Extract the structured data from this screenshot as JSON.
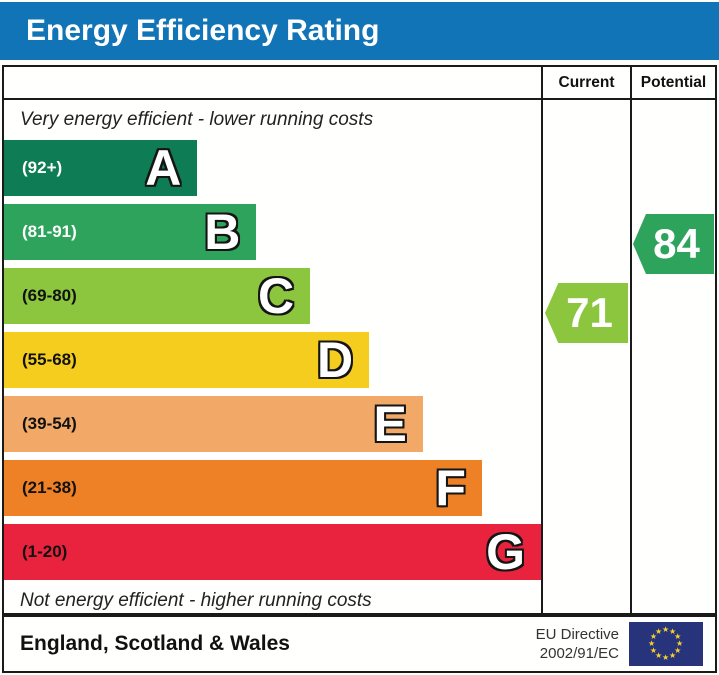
{
  "title": "Energy Efficiency Rating",
  "header": {
    "current": "Current",
    "potential": "Potential"
  },
  "notes": {
    "top": "Very energy efficient - lower running costs",
    "bottom": "Not energy efficient - higher running costs"
  },
  "bands": [
    {
      "letter": "A",
      "range": "(92+)",
      "color": "#0e7d55",
      "label_color": "#ffffff",
      "width_pct": 36
    },
    {
      "letter": "B",
      "range": "(81-91)",
      "color": "#2ea35c",
      "label_color": "#ffffff",
      "width_pct": 47
    },
    {
      "letter": "C",
      "range": "(69-80)",
      "color": "#8cc63f",
      "label_color": "#111111",
      "width_pct": 57
    },
    {
      "letter": "D",
      "range": "(55-68)",
      "color": "#f5cd1f",
      "label_color": "#111111",
      "width_pct": 68
    },
    {
      "letter": "E",
      "range": "(39-54)",
      "color": "#f2a968",
      "label_color": "#111111",
      "width_pct": 78
    },
    {
      "letter": "F",
      "range": "(21-38)",
      "color": "#ee8125",
      "label_color": "#111111",
      "width_pct": 89
    },
    {
      "letter": "G",
      "range": "(1-20)",
      "color": "#e9233d",
      "label_color": "#111111",
      "width_pct": 100
    }
  ],
  "markers": {
    "current": {
      "value": "71",
      "color": "#8cc63f",
      "band": "C"
    },
    "potential": {
      "value": "84",
      "color": "#2ea35c",
      "band": "B"
    }
  },
  "footer": {
    "region": "England, Scotland & Wales",
    "directive_line1": "EU Directive",
    "directive_line2": "2002/91/EC"
  },
  "colors": {
    "title_bar": "#1074b6",
    "border": "#1a1a1a",
    "flag_bg": "#27337a",
    "flag_stars": "#f8d12a"
  },
  "chart_data": {
    "type": "bar",
    "orientation": "horizontal",
    "title": "Energy Efficiency Rating",
    "categories": [
      "A",
      "B",
      "C",
      "D",
      "E",
      "F",
      "G"
    ],
    "category_ranges": [
      "92+",
      "81-91",
      "69-80",
      "55-68",
      "39-54",
      "21-38",
      "1-20"
    ],
    "bar_lengths_pct": [
      36,
      47,
      57,
      68,
      78,
      89,
      100
    ],
    "bar_colors": [
      "#0e7d55",
      "#2ea35c",
      "#8cc63f",
      "#f5cd1f",
      "#f2a968",
      "#ee8125",
      "#e9233d"
    ],
    "columns": [
      "Current",
      "Potential"
    ],
    "markers": [
      {
        "name": "Current",
        "value": 71,
        "band": "C",
        "color": "#8cc63f"
      },
      {
        "name": "Potential",
        "value": 84,
        "band": "B",
        "color": "#2ea35c"
      }
    ],
    "annotations": [
      "Very energy efficient - lower running costs",
      "Not energy efficient - higher running costs"
    ],
    "legend_position": "none",
    "grid": false,
    "footnote": "England, Scotland & Wales — EU Directive 2002/91/EC"
  }
}
